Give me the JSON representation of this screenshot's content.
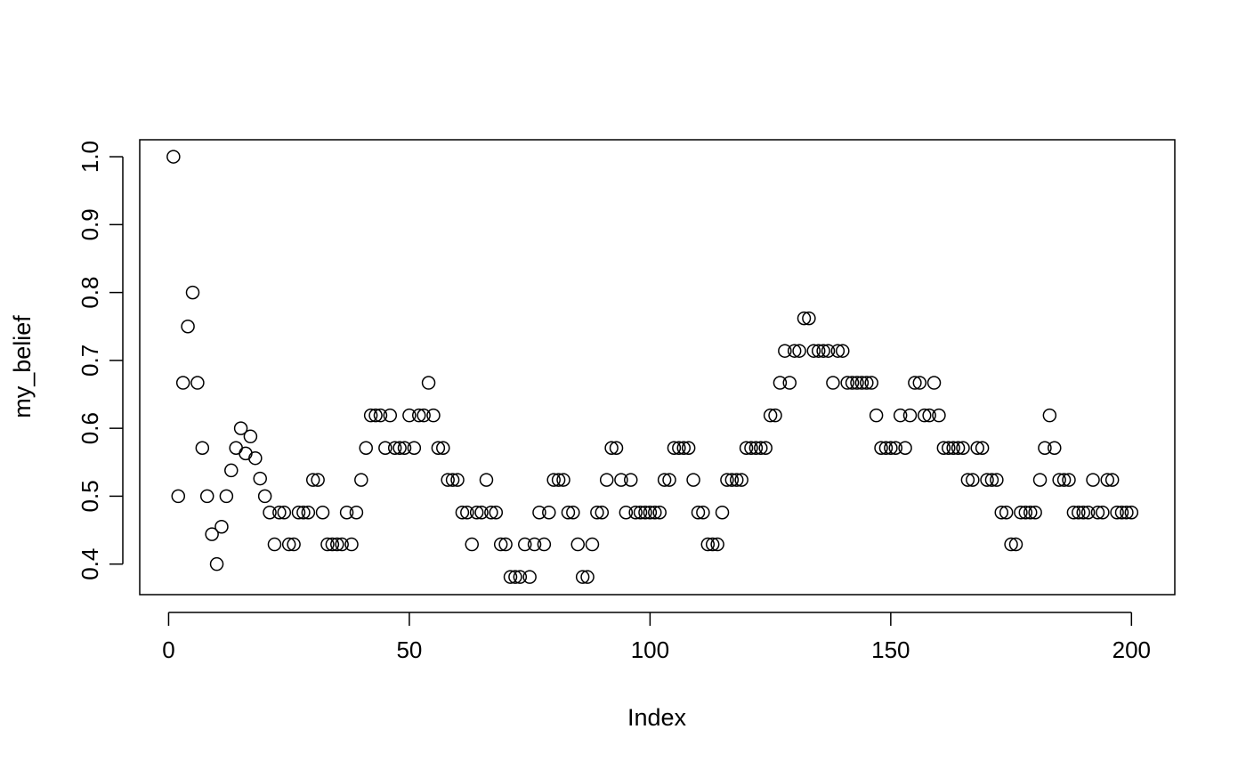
{
  "chart_data": {
    "type": "scatter",
    "title": "",
    "xlabel": "Index",
    "ylabel": "my_belief",
    "xlim": [
      -6,
      209
    ],
    "ylim": [
      0.355,
      1.025
    ],
    "xticks": [
      "0",
      "50",
      "100",
      "150",
      "200"
    ],
    "yticks": [
      "0.4",
      "0.5",
      "0.6",
      "0.7",
      "0.8",
      "0.9",
      "1.0"
    ],
    "grid": false,
    "legend": "none",
    "marker": "open-circle",
    "x_start": 1,
    "values": [
      1.0,
      0.5,
      0.667,
      0.75,
      0.8,
      0.667,
      0.571,
      0.5,
      0.444,
      0.4,
      0.455,
      0.5,
      0.538,
      0.571,
      0.6,
      0.563,
      0.588,
      0.556,
      0.526,
      0.5,
      0.476,
      0.429,
      0.476,
      0.476,
      0.429,
      0.429,
      0.476,
      0.476,
      0.476,
      0.524,
      0.524,
      0.476,
      0.429,
      0.429,
      0.429,
      0.429,
      0.476,
      0.429,
      0.476,
      0.524,
      0.571,
      0.619,
      0.619,
      0.619,
      0.571,
      0.619,
      0.571,
      0.571,
      0.571,
      0.619,
      0.571,
      0.619,
      0.619,
      0.667,
      0.619,
      0.571,
      0.571,
      0.524,
      0.524,
      0.524,
      0.476,
      0.476,
      0.429,
      0.476,
      0.476,
      0.524,
      0.476,
      0.476,
      0.429,
      0.429,
      0.381,
      0.381,
      0.381,
      0.429,
      0.381,
      0.429,
      0.476,
      0.429,
      0.476,
      0.524,
      0.524,
      0.524,
      0.476,
      0.476,
      0.429,
      0.381,
      0.381,
      0.429,
      0.476,
      0.476,
      0.524,
      0.571,
      0.571,
      0.524,
      0.476,
      0.524,
      0.476,
      0.476,
      0.476,
      0.476,
      0.476,
      0.476,
      0.524,
      0.524,
      0.571,
      0.571,
      0.571,
      0.571,
      0.524,
      0.476,
      0.476,
      0.429,
      0.429,
      0.429,
      0.476,
      0.524,
      0.524,
      0.524,
      0.524,
      0.571,
      0.571,
      0.571,
      0.571,
      0.571,
      0.619,
      0.619,
      0.667,
      0.714,
      0.667,
      0.714,
      0.714,
      0.762,
      0.762,
      0.714,
      0.714,
      0.714,
      0.714,
      0.667,
      0.714,
      0.714,
      0.667,
      0.667,
      0.667,
      0.667,
      0.667,
      0.667,
      0.619,
      0.571,
      0.571,
      0.571,
      0.571,
      0.619,
      0.571,
      0.619,
      0.667,
      0.667,
      0.619,
      0.619,
      0.667,
      0.619,
      0.571,
      0.571,
      0.571,
      0.571,
      0.571,
      0.524,
      0.524,
      0.571,
      0.571,
      0.524,
      0.524,
      0.524,
      0.476,
      0.476,
      0.429,
      0.429,
      0.476,
      0.476,
      0.476,
      0.476,
      0.524,
      0.571,
      0.619,
      0.571,
      0.524,
      0.524,
      0.524,
      0.476,
      0.476,
      0.476,
      0.476,
      0.524,
      0.476,
      0.476,
      0.524,
      0.524,
      0.476,
      0.476,
      0.476,
      0.476
    ]
  }
}
